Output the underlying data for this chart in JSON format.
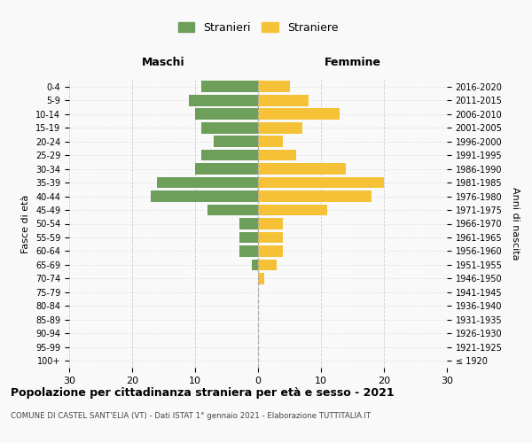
{
  "age_groups": [
    "100+",
    "95-99",
    "90-94",
    "85-89",
    "80-84",
    "75-79",
    "70-74",
    "65-69",
    "60-64",
    "55-59",
    "50-54",
    "45-49",
    "40-44",
    "35-39",
    "30-34",
    "25-29",
    "20-24",
    "15-19",
    "10-14",
    "5-9",
    "0-4"
  ],
  "birth_years": [
    "≤ 1920",
    "1921-1925",
    "1926-1930",
    "1931-1935",
    "1936-1940",
    "1941-1945",
    "1946-1950",
    "1951-1955",
    "1956-1960",
    "1961-1965",
    "1966-1970",
    "1971-1975",
    "1976-1980",
    "1981-1985",
    "1986-1990",
    "1991-1995",
    "1996-2000",
    "2001-2005",
    "2006-2010",
    "2011-2015",
    "2016-2020"
  ],
  "maschi": [
    0,
    0,
    0,
    0,
    0,
    0,
    0,
    1,
    3,
    3,
    3,
    8,
    17,
    16,
    10,
    9,
    7,
    9,
    10,
    11,
    9
  ],
  "femmine": [
    0,
    0,
    0,
    0,
    0,
    0,
    1,
    3,
    4,
    4,
    4,
    11,
    18,
    20,
    14,
    6,
    4,
    7,
    13,
    8,
    5
  ],
  "color_maschi": "#6d9e5a",
  "color_femmine": "#f5c237",
  "title": "Popolazione per cittadinanza straniera per età e sesso - 2021",
  "subtitle": "COMUNE DI CASTEL SANT'ELIA (VT) - Dati ISTAT 1° gennaio 2021 - Elaborazione TUTTITALIA.IT",
  "legend_maschi": "Stranieri",
  "legend_femmine": "Straniere",
  "xlabel_left": "Maschi",
  "xlabel_right": "Femmine",
  "ylabel_left": "Fasce di età",
  "ylabel_right": "Anni di nascita",
  "xlim": 30,
  "background_color": "#f9f9f9",
  "grid_color": "#cccccc"
}
